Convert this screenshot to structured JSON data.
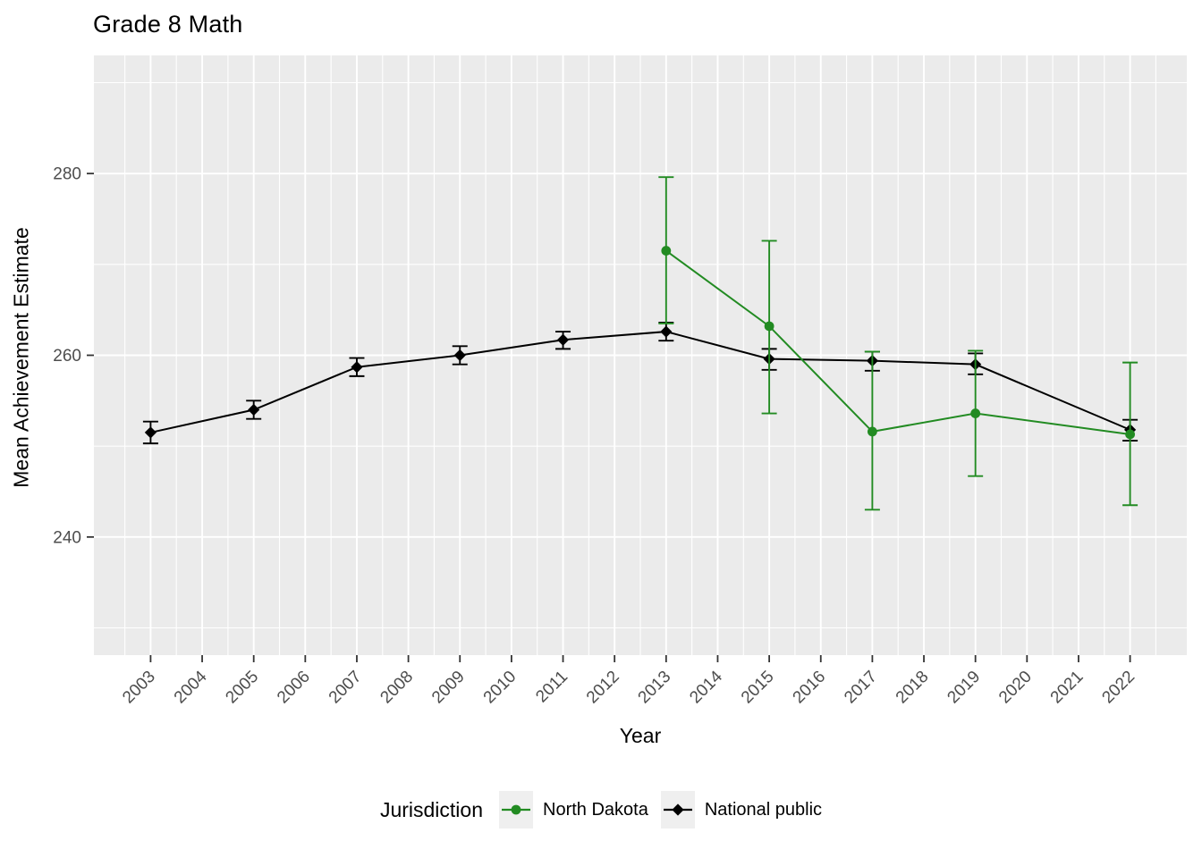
{
  "chart_data": {
    "type": "line",
    "title": "Grade 8 Math",
    "xlabel": "Year",
    "ylabel": "Mean Achievement Estimate",
    "legend_title": "Jurisdiction",
    "legend_position": "bottom",
    "grid": true,
    "error_bars": true,
    "panel_bg": "#EBEBEB",
    "grid_color": "#FFFFFF",
    "tick_color": "#333333",
    "tick_label_color": "#4D4D4D",
    "legend_key_bg": "#EFEFEF",
    "xlim": [
      2001.9,
      2023.1
    ],
    "ylim": [
      227,
      293
    ],
    "x_ticks": [
      2003,
      2004,
      2005,
      2006,
      2007,
      2008,
      2009,
      2010,
      2011,
      2012,
      2013,
      2014,
      2015,
      2016,
      2017,
      2018,
      2019,
      2020,
      2021,
      2022
    ],
    "y_ticks": [
      240,
      260,
      280
    ],
    "y_minor": [
      230,
      250,
      270,
      290
    ],
    "series": [
      {
        "name": "North Dakota",
        "color": "#228B22",
        "marker": "circle",
        "x": [
          2013,
          2015,
          2017,
          2019,
          2022
        ],
        "y": [
          271.5,
          263.2,
          251.6,
          253.6,
          251.3
        ],
        "ci_low": [
          263.5,
          253.6,
          243.0,
          246.7,
          243.5
        ],
        "ci_high": [
          279.6,
          272.6,
          260.4,
          260.5,
          259.2
        ]
      },
      {
        "name": "National public",
        "color": "#000000",
        "marker": "diamond",
        "x": [
          2003,
          2005,
          2007,
          2009,
          2011,
          2013,
          2015,
          2017,
          2019,
          2022
        ],
        "y": [
          251.5,
          254.0,
          258.7,
          260.0,
          261.7,
          262.6,
          259.6,
          259.4,
          259.0,
          251.8
        ],
        "ci_low": [
          250.3,
          253.0,
          257.7,
          259.0,
          260.7,
          261.6,
          258.4,
          258.3,
          257.9,
          250.6
        ],
        "ci_high": [
          252.7,
          255.0,
          259.7,
          261.0,
          262.6,
          263.6,
          260.7,
          260.4,
          260.2,
          252.9
        ]
      }
    ]
  }
}
